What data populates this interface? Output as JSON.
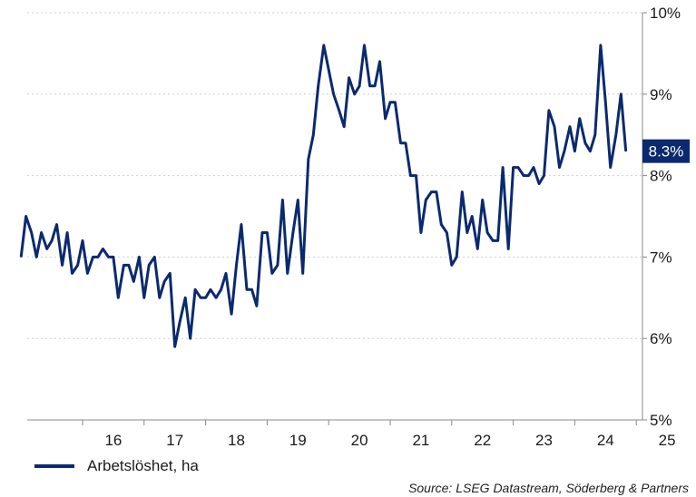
{
  "chart_data": {
    "type": "line",
    "title": "",
    "xlabel": "",
    "ylabel": "",
    "xlim": [
      2015.1,
      2025.1
    ],
    "ylim": [
      5,
      10
    ],
    "x_ticks": [
      {
        "value": 2016,
        "label": "16"
      },
      {
        "value": 2017,
        "label": "17"
      },
      {
        "value": 2018,
        "label": "18"
      },
      {
        "value": 2019,
        "label": "19"
      },
      {
        "value": 2020,
        "label": "20"
      },
      {
        "value": 2021,
        "label": "21"
      },
      {
        "value": 2022,
        "label": "22"
      },
      {
        "value": 2023,
        "label": "23"
      },
      {
        "value": 2024,
        "label": "24"
      },
      {
        "value": 2025,
        "label": "25"
      }
    ],
    "y_ticks": [
      {
        "value": 5,
        "label": "5%"
      },
      {
        "value": 6,
        "label": "6%"
      },
      {
        "value": 7,
        "label": "7%"
      },
      {
        "value": 8,
        "label": "8%"
      },
      {
        "value": 9,
        "label": "9%"
      },
      {
        "value": 10,
        "label": "10%"
      }
    ],
    "y_axis_side": "right",
    "grid": "horizontal dotted",
    "line_color": "#0b2a6e",
    "last_value_label": "8.3%",
    "series": [
      {
        "name": "Arbetslöshet, ha",
        "color": "#0b2a6e",
        "points": [
          [
            2015.0,
            7.0
          ],
          [
            2015.08,
            7.5
          ],
          [
            2015.17,
            7.3
          ],
          [
            2015.25,
            7.0
          ],
          [
            2015.33,
            7.3
          ],
          [
            2015.42,
            7.1
          ],
          [
            2015.5,
            7.2
          ],
          [
            2015.58,
            7.4
          ],
          [
            2015.67,
            6.9
          ],
          [
            2015.75,
            7.3
          ],
          [
            2015.83,
            6.8
          ],
          [
            2015.92,
            6.9
          ],
          [
            2016.0,
            7.2
          ],
          [
            2016.08,
            6.8
          ],
          [
            2016.17,
            7.0
          ],
          [
            2016.25,
            7.0
          ],
          [
            2016.33,
            7.1
          ],
          [
            2016.42,
            7.0
          ],
          [
            2016.5,
            7.0
          ],
          [
            2016.58,
            6.5
          ],
          [
            2016.67,
            6.9
          ],
          [
            2016.75,
            6.9
          ],
          [
            2016.83,
            6.7
          ],
          [
            2016.92,
            7.0
          ],
          [
            2017.0,
            6.5
          ],
          [
            2017.08,
            6.9
          ],
          [
            2017.17,
            7.0
          ],
          [
            2017.25,
            6.5
          ],
          [
            2017.33,
            6.7
          ],
          [
            2017.42,
            6.8
          ],
          [
            2017.5,
            5.9
          ],
          [
            2017.58,
            6.2
          ],
          [
            2017.67,
            6.5
          ],
          [
            2017.75,
            6.0
          ],
          [
            2017.83,
            6.6
          ],
          [
            2017.92,
            6.5
          ],
          [
            2018.0,
            6.5
          ],
          [
            2018.08,
            6.6
          ],
          [
            2018.17,
            6.5
          ],
          [
            2018.25,
            6.6
          ],
          [
            2018.33,
            6.8
          ],
          [
            2018.42,
            6.3
          ],
          [
            2018.5,
            6.9
          ],
          [
            2018.58,
            7.4
          ],
          [
            2018.67,
            6.6
          ],
          [
            2018.75,
            6.6
          ],
          [
            2018.83,
            6.4
          ],
          [
            2018.92,
            7.3
          ],
          [
            2019.0,
            7.3
          ],
          [
            2019.08,
            6.8
          ],
          [
            2019.17,
            6.9
          ],
          [
            2019.25,
            7.7
          ],
          [
            2019.33,
            6.8
          ],
          [
            2019.42,
            7.3
          ],
          [
            2019.5,
            7.7
          ],
          [
            2019.58,
            6.8
          ],
          [
            2019.67,
            8.2
          ],
          [
            2019.75,
            8.5
          ],
          [
            2019.83,
            9.1
          ],
          [
            2019.92,
            9.6
          ],
          [
            2020.0,
            9.3
          ],
          [
            2020.08,
            9.0
          ],
          [
            2020.17,
            8.8
          ],
          [
            2020.25,
            8.6
          ],
          [
            2020.33,
            9.2
          ],
          [
            2020.42,
            9.0
          ],
          [
            2020.5,
            9.1
          ],
          [
            2020.58,
            9.6
          ],
          [
            2020.67,
            9.1
          ],
          [
            2020.75,
            9.1
          ],
          [
            2020.83,
            9.4
          ],
          [
            2020.92,
            8.7
          ],
          [
            2021.0,
            8.9
          ],
          [
            2021.08,
            8.9
          ],
          [
            2021.17,
            8.4
          ],
          [
            2021.25,
            8.4
          ],
          [
            2021.33,
            8.0
          ],
          [
            2021.42,
            8.0
          ],
          [
            2021.5,
            7.3
          ],
          [
            2021.58,
            7.7
          ],
          [
            2021.67,
            7.8
          ],
          [
            2021.75,
            7.8
          ],
          [
            2021.83,
            7.4
          ],
          [
            2021.92,
            7.3
          ],
          [
            2022.0,
            6.9
          ],
          [
            2022.08,
            7.0
          ],
          [
            2022.17,
            7.8
          ],
          [
            2022.25,
            7.3
          ],
          [
            2022.33,
            7.5
          ],
          [
            2022.42,
            7.1
          ],
          [
            2022.5,
            7.7
          ],
          [
            2022.58,
            7.3
          ],
          [
            2022.67,
            7.2
          ],
          [
            2022.75,
            7.2
          ],
          [
            2022.83,
            8.1
          ],
          [
            2022.92,
            7.1
          ],
          [
            2023.0,
            8.1
          ],
          [
            2023.08,
            8.1
          ],
          [
            2023.17,
            8.0
          ],
          [
            2023.25,
            8.0
          ],
          [
            2023.33,
            8.1
          ],
          [
            2023.42,
            7.9
          ],
          [
            2023.5,
            8.0
          ],
          [
            2023.58,
            8.8
          ],
          [
            2023.67,
            8.6
          ],
          [
            2023.75,
            8.1
          ],
          [
            2023.83,
            8.3
          ],
          [
            2023.92,
            8.6
          ],
          [
            2024.0,
            8.3
          ],
          [
            2024.08,
            8.7
          ],
          [
            2024.17,
            8.4
          ],
          [
            2024.25,
            8.3
          ],
          [
            2024.33,
            8.5
          ],
          [
            2024.42,
            9.6
          ],
          [
            2024.5,
            8.9
          ],
          [
            2024.58,
            8.1
          ],
          [
            2024.67,
            8.5
          ],
          [
            2024.75,
            9.0
          ],
          [
            2024.83,
            8.3
          ]
        ]
      }
    ]
  },
  "legend": {
    "label": "Arbetslöshet, ha"
  },
  "source": "Source: LSEG Datastream, Söderberg & Partners"
}
